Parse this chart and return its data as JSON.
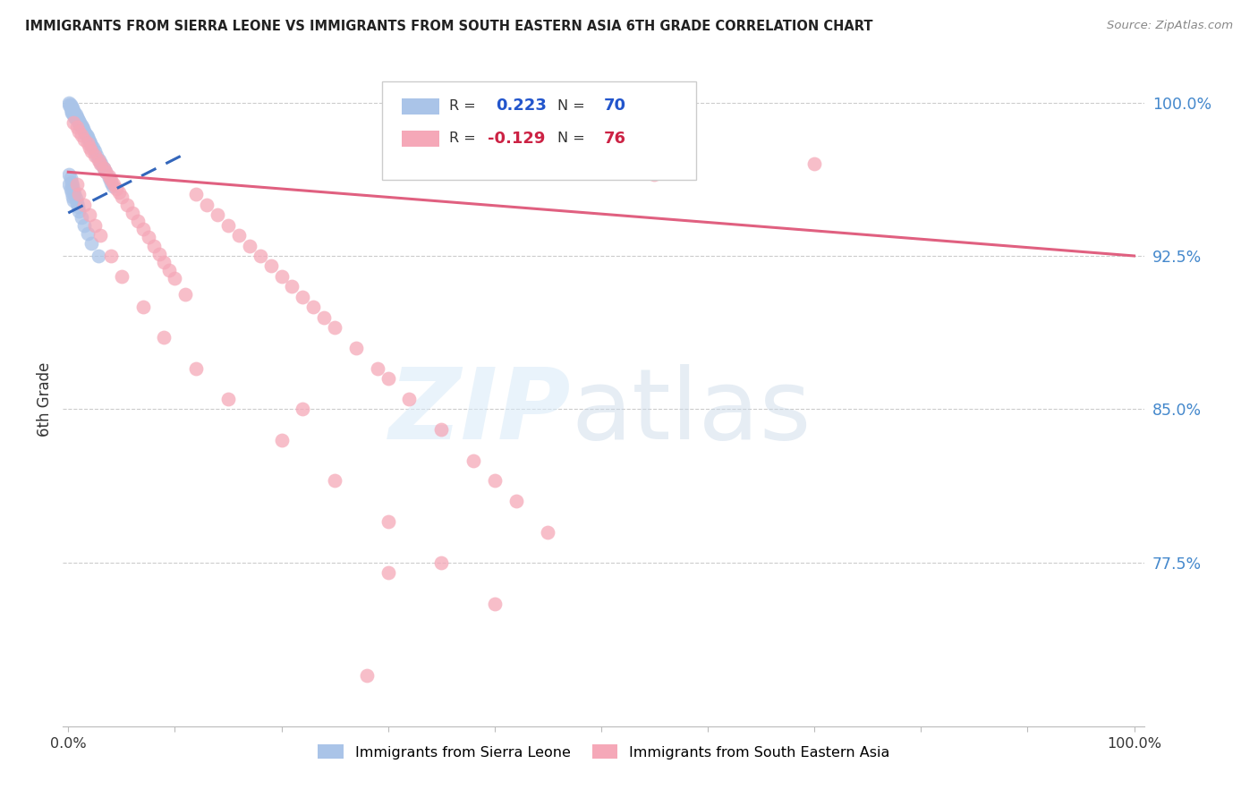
{
  "title": "IMMIGRANTS FROM SIERRA LEONE VS IMMIGRANTS FROM SOUTH EASTERN ASIA 6TH GRADE CORRELATION CHART",
  "source": "Source: ZipAtlas.com",
  "ylabel": "6th Grade",
  "yticks": [
    0.775,
    0.85,
    0.925,
    1.0
  ],
  "ytick_labels": [
    "77.5%",
    "85.0%",
    "92.5%",
    "100.0%"
  ],
  "xlim": [
    0.0,
    1.0
  ],
  "ylim": [
    0.695,
    1.015
  ],
  "legend_R1": "0.223",
  "legend_N1": "70",
  "legend_R2": "-0.129",
  "legend_N2": "76",
  "blue_color": "#aac4e8",
  "pink_color": "#f5a8b8",
  "blue_line_color": "#3366bb",
  "pink_line_color": "#e06080",
  "legend_label1": "Immigrants from Sierra Leone",
  "legend_label2": "Immigrants from South Eastern Asia",
  "blue_x": [
    0.001,
    0.001,
    0.002,
    0.002,
    0.002,
    0.003,
    0.003,
    0.003,
    0.003,
    0.004,
    0.004,
    0.004,
    0.005,
    0.005,
    0.005,
    0.006,
    0.006,
    0.006,
    0.007,
    0.007,
    0.007,
    0.008,
    0.008,
    0.009,
    0.009,
    0.01,
    0.01,
    0.011,
    0.011,
    0.012,
    0.013,
    0.014,
    0.015,
    0.016,
    0.017,
    0.018,
    0.019,
    0.02,
    0.021,
    0.022,
    0.023,
    0.025,
    0.027,
    0.029,
    0.031,
    0.033,
    0.035,
    0.038,
    0.04,
    0.042,
    0.001,
    0.001,
    0.002,
    0.002,
    0.003,
    0.003,
    0.004,
    0.004,
    0.005,
    0.005,
    0.006,
    0.007,
    0.008,
    0.009,
    0.01,
    0.012,
    0.015,
    0.018,
    0.022,
    0.028
  ],
  "blue_y": [
    1.0,
    0.999,
    0.999,
    0.998,
    0.997,
    0.998,
    0.997,
    0.996,
    0.995,
    0.997,
    0.996,
    0.995,
    0.996,
    0.995,
    0.994,
    0.995,
    0.994,
    0.993,
    0.994,
    0.993,
    0.992,
    0.993,
    0.992,
    0.992,
    0.991,
    0.991,
    0.99,
    0.99,
    0.989,
    0.989,
    0.988,
    0.987,
    0.986,
    0.985,
    0.984,
    0.983,
    0.982,
    0.981,
    0.98,
    0.979,
    0.978,
    0.976,
    0.974,
    0.972,
    0.97,
    0.968,
    0.966,
    0.963,
    0.961,
    0.959,
    0.965,
    0.96,
    0.963,
    0.958,
    0.961,
    0.956,
    0.959,
    0.954,
    0.957,
    0.952,
    0.955,
    0.953,
    0.951,
    0.949,
    0.947,
    0.944,
    0.94,
    0.936,
    0.931,
    0.925
  ],
  "pink_x": [
    0.005,
    0.008,
    0.01,
    0.012,
    0.015,
    0.018,
    0.02,
    0.022,
    0.025,
    0.028,
    0.03,
    0.033,
    0.035,
    0.038,
    0.04,
    0.043,
    0.045,
    0.048,
    0.05,
    0.055,
    0.06,
    0.065,
    0.07,
    0.075,
    0.08,
    0.085,
    0.09,
    0.095,
    0.1,
    0.11,
    0.12,
    0.13,
    0.14,
    0.15,
    0.16,
    0.17,
    0.18,
    0.19,
    0.2,
    0.21,
    0.22,
    0.23,
    0.24,
    0.25,
    0.27,
    0.29,
    0.3,
    0.32,
    0.35,
    0.38,
    0.4,
    0.42,
    0.45,
    0.5,
    0.55,
    0.008,
    0.01,
    0.015,
    0.02,
    0.025,
    0.03,
    0.04,
    0.05,
    0.07,
    0.09,
    0.12,
    0.15,
    0.2,
    0.25,
    0.3,
    0.35,
    0.4,
    0.22,
    0.3,
    0.7,
    0.28
  ],
  "pink_y": [
    0.99,
    0.988,
    0.986,
    0.984,
    0.982,
    0.98,
    0.978,
    0.976,
    0.974,
    0.972,
    0.97,
    0.968,
    0.966,
    0.964,
    0.962,
    0.96,
    0.958,
    0.956,
    0.954,
    0.95,
    0.946,
    0.942,
    0.938,
    0.934,
    0.93,
    0.926,
    0.922,
    0.918,
    0.914,
    0.906,
    0.955,
    0.95,
    0.945,
    0.94,
    0.935,
    0.93,
    0.925,
    0.92,
    0.915,
    0.91,
    0.905,
    0.9,
    0.895,
    0.89,
    0.88,
    0.87,
    0.865,
    0.855,
    0.84,
    0.825,
    0.815,
    0.805,
    0.79,
    0.97,
    0.965,
    0.96,
    0.955,
    0.95,
    0.945,
    0.94,
    0.935,
    0.925,
    0.915,
    0.9,
    0.885,
    0.87,
    0.855,
    0.835,
    0.815,
    0.795,
    0.775,
    0.755,
    0.85,
    0.77,
    0.97,
    0.72
  ],
  "blue_line_x": [
    0.0,
    0.11
  ],
  "blue_line_y": [
    0.946,
    0.975
  ],
  "pink_line_x": [
    0.0,
    1.0
  ],
  "pink_line_y": [
    0.966,
    0.925
  ]
}
